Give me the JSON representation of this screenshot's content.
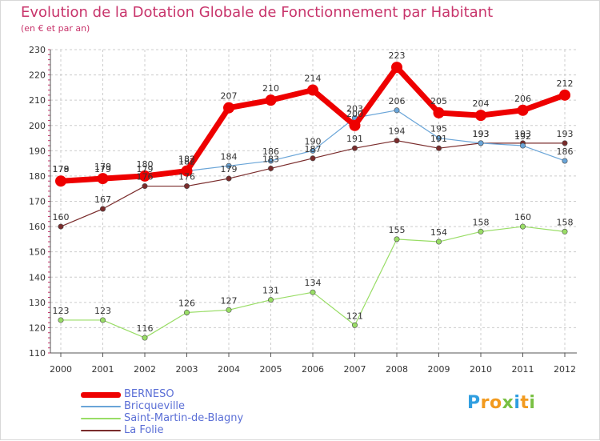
{
  "header": {
    "title": "Evolution de la Dotation Globale de Fonctionnement par Habitant",
    "subtitle": "(en € et par an)"
  },
  "chart_data": {
    "type": "line",
    "title": "Evolution de la Dotation Globale de Fonctionnement par Habitant",
    "subtitle": "(en € et par an)",
    "xlabel": "",
    "ylabel": "",
    "categories": [
      "2000",
      "2001",
      "2002",
      "2003",
      "2004",
      "2005",
      "2006",
      "2007",
      "2008",
      "2009",
      "2010",
      "2011",
      "2012"
    ],
    "ylim": [
      110,
      230
    ],
    "yticks": [
      110,
      120,
      130,
      140,
      150,
      160,
      170,
      180,
      190,
      200,
      210,
      220,
      230
    ],
    "grid": true,
    "legend_position": "bottom-left",
    "series": [
      {
        "name": "BERNESO",
        "color": "#ee0000",
        "values": [
          178,
          179,
          180,
          182,
          207,
          210,
          214,
          200,
          223,
          205,
          204,
          206,
          212
        ],
        "labels": [
          "178",
          "179",
          "180",
          "182",
          "207",
          "210",
          "214",
          "200",
          "223",
          "205",
          "204",
          "206",
          "212"
        ]
      },
      {
        "name": "Bricqueville",
        "color": "#6aa5d8",
        "values": [
          179,
          179,
          179,
          182,
          184,
          186,
          190,
          203,
          206,
          195,
          193,
          192,
          186
        ],
        "labels": [
          "179",
          "179",
          "179",
          "182",
          "184",
          "186",
          "190",
          "203",
          "206",
          "195",
          "193",
          "192",
          "186"
        ]
      },
      {
        "name": "Saint-Martin-de-Blagny",
        "color": "#99dd66",
        "values": [
          123,
          123,
          116,
          126,
          127,
          131,
          134,
          121,
          155,
          154,
          158,
          160,
          158
        ],
        "labels": [
          "123",
          "123",
          "116",
          "126",
          "127",
          "131",
          "134",
          "121",
          "155",
          "154",
          "158",
          "160",
          "158"
        ]
      },
      {
        "name": "La Folie",
        "color": "#7a2c2c",
        "values": [
          160,
          167,
          176,
          176,
          179,
          183,
          187,
          191,
          194,
          191,
          193,
          193,
          193
        ],
        "labels": [
          "160",
          "167",
          "176",
          "176",
          "179",
          "183",
          "187",
          "191",
          "194",
          "191",
          "193",
          "193",
          "193"
        ]
      }
    ]
  },
  "logo": {
    "letters": [
      "P",
      "r",
      "o",
      "x",
      "i",
      "t",
      "i"
    ],
    "colors": [
      "#2f9ee0",
      "#f29a1e",
      "#f29a1e",
      "#79c043",
      "#2f9ee0",
      "#f29a1e",
      "#79c043"
    ]
  }
}
